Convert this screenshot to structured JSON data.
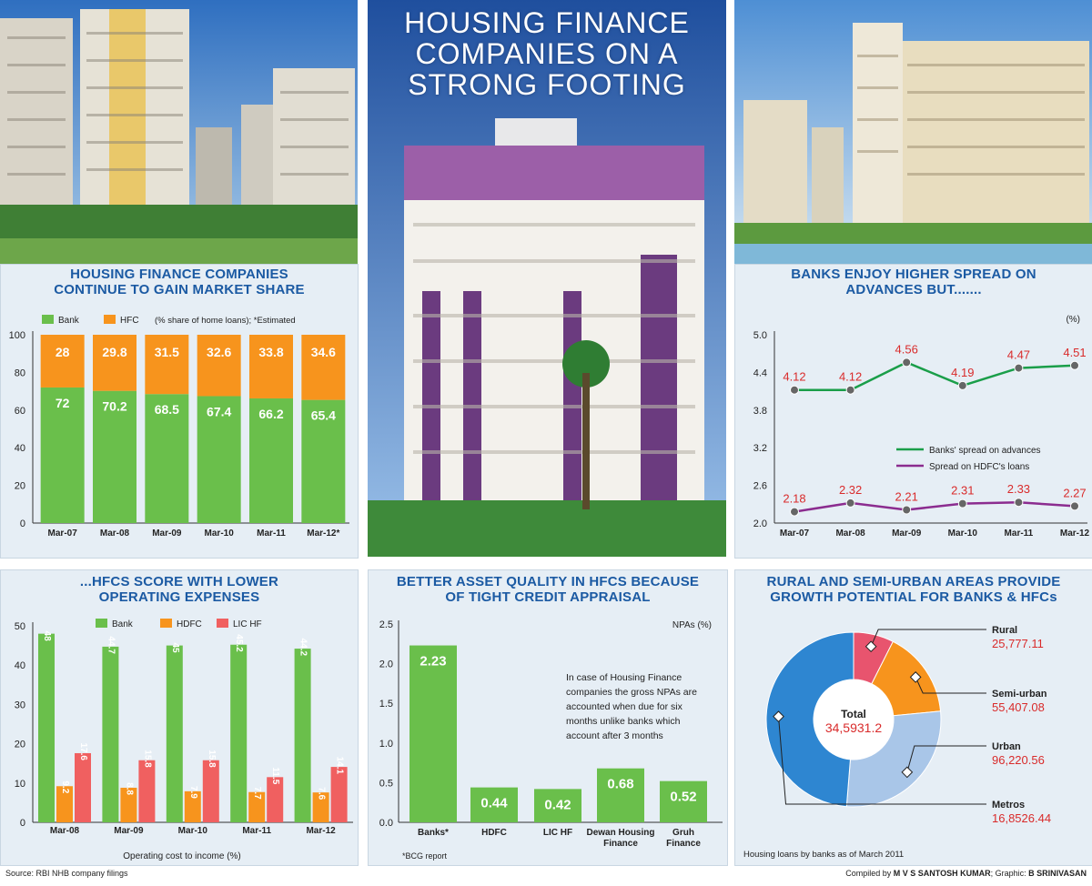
{
  "main_title": "HOUSING FINANCE COMPANIES ON A STRONG FOOTING",
  "footer": {
    "source": "Source: RBI NHB company filings",
    "compiled_label": "Compiled by",
    "compiled_name": "M V S SANTOSH KUMAR",
    "graphic_label": "; Graphic:",
    "graphic_name": "B SRINIVASAN"
  },
  "colors": {
    "bank": "#6abf4b",
    "hfc": "#f7941d",
    "lichf": "#f06060",
    "green_line": "#1a9e49",
    "purple_line": "#8b2c8f",
    "title_blue": "#1b5aa3",
    "red_label": "#d92b2b"
  },
  "chart_data": [
    {
      "id": "market-share",
      "type": "bar",
      "stacked": true,
      "title": "HOUSING FINANCE COMPANIES CONTINUE TO GAIN MARKET SHARE",
      "note": "(% share of home loans); *Estimated",
      "categories": [
        "Mar-07",
        "Mar-08",
        "Mar-09",
        "Mar-10",
        "Mar-11",
        "Mar-12*"
      ],
      "series": [
        {
          "name": "Bank",
          "values": [
            72,
            70.2,
            68.5,
            67.4,
            66.2,
            65.4
          ],
          "labels": [
            "72",
            "70.2",
            "68.5",
            "67.4",
            "66.2",
            "65.4"
          ]
        },
        {
          "name": "HFC",
          "values": [
            28,
            29.8,
            31.5,
            32.6,
            33.8,
            34.6
          ],
          "labels": [
            "28",
            "29.8",
            "31.5",
            "32.6",
            "33.8",
            "34.6"
          ]
        }
      ],
      "ylim": [
        0,
        100
      ],
      "yticks": [
        "0",
        "20",
        "40",
        "60",
        "80",
        "100"
      ]
    },
    {
      "id": "spread",
      "type": "line",
      "title": "BANKS ENJOY HIGHER SPREAD ON ADVANCES BUT.......",
      "unit": "(%)",
      "categories": [
        "Mar-07",
        "Mar-08",
        "Mar-09",
        "Mar-10",
        "Mar-11",
        "Mar-12"
      ],
      "series": [
        {
          "name": "Banks' spread on advances",
          "values": [
            4.12,
            4.12,
            4.56,
            4.19,
            4.47,
            4.51
          ],
          "labels": [
            "4.12",
            "4.12",
            "4.56",
            "4.19",
            "4.47",
            "4.51"
          ]
        },
        {
          "name": "Spread on HDFC's loans",
          "values": [
            2.18,
            2.32,
            2.21,
            2.31,
            2.33,
            2.27
          ],
          "labels": [
            "2.18",
            "2.32",
            "2.21",
            "2.31",
            "2.33",
            "2.27"
          ]
        }
      ],
      "ylim": [
        2.0,
        5.0
      ],
      "yticks": [
        "2.0",
        "2.6",
        "3.2",
        "3.8",
        "4.4",
        "5.0"
      ]
    },
    {
      "id": "operating-expenses",
      "type": "bar",
      "title": "...HFCS SCORE WITH LOWER OPERATING EXPENSES",
      "xlabel": "Operating cost to income (%)",
      "categories": [
        "Mar-08",
        "Mar-09",
        "Mar-10",
        "Mar-11",
        "Mar-12"
      ],
      "series": [
        {
          "name": "Bank",
          "values": [
            48,
            44.7,
            45,
            45.2,
            44.2
          ],
          "labels": [
            "48",
            "44.7",
            "45",
            "45.2",
            "44.2"
          ]
        },
        {
          "name": "HDFC",
          "values": [
            9.2,
            8.8,
            7.9,
            7.7,
            7.6
          ],
          "labels": [
            "9.2",
            "8.8",
            "7.9",
            "7.7",
            "7.6"
          ]
        },
        {
          "name": "LIC HF",
          "values": [
            17.6,
            15.8,
            15.8,
            11.5,
            14.1
          ],
          "labels": [
            "17.6",
            "15.8",
            "15.8",
            "11.5",
            "14.1"
          ]
        }
      ],
      "ylim": [
        0,
        50
      ],
      "yticks": [
        "0",
        "10",
        "20",
        "30",
        "40",
        "50"
      ]
    },
    {
      "id": "npa",
      "type": "bar",
      "title": "BETTER ASSET QUALITY IN HFCS BECAUSE OF TIGHT CREDIT APPRAISAL",
      "unit": "NPAs (%)",
      "categories": [
        "Banks*",
        "HDFC",
        "LIC HF",
        "Dewan Housing Finance",
        "Gruh Finance"
      ],
      "category_lines": [
        [
          "Banks*"
        ],
        [
          "HDFC"
        ],
        [
          "LIC HF"
        ],
        [
          "Dewan Housing",
          "Finance"
        ],
        [
          "Gruh",
          "Finance"
        ]
      ],
      "values": [
        2.23,
        0.44,
        0.42,
        0.68,
        0.52
      ],
      "labels": [
        "2.23",
        "0.44",
        "0.42",
        "0.68",
        "0.52"
      ],
      "ylim": [
        0,
        2.5
      ],
      "yticks": [
        "0.0",
        "0.5",
        "1.0",
        "1.5",
        "2.0",
        "2.5"
      ],
      "annotation_lines": [
        "In case of Housing Finance",
        "companies the gross NPAs are",
        "accounted when due for six",
        "months unlike banks which",
        "account after 3 months"
      ],
      "footnote": "*BCG report"
    },
    {
      "id": "rural-urban",
      "type": "pie",
      "donut": true,
      "title": "RURAL AND SEMI-URBAN AREAS PROVIDE GROWTH POTENTIAL FOR BANKS & HFCs",
      "center_label": "Total",
      "center_value": "34,5931.2",
      "slices": [
        {
          "name": "Rural",
          "value": 25777.11,
          "label": "25,777.11",
          "color": "#e8546e"
        },
        {
          "name": "Semi-urban",
          "value": 55407.08,
          "label": "55,407.08",
          "color": "#f7941d"
        },
        {
          "name": "Urban",
          "value": 96220.56,
          "label": "96,220.56",
          "color": "#a9c6e8"
        },
        {
          "name": "Metros",
          "value": 168526.44,
          "label": "16,8526.44",
          "color": "#2e86d1"
        }
      ],
      "caption": "Housing loans by banks as of March 2011"
    }
  ]
}
